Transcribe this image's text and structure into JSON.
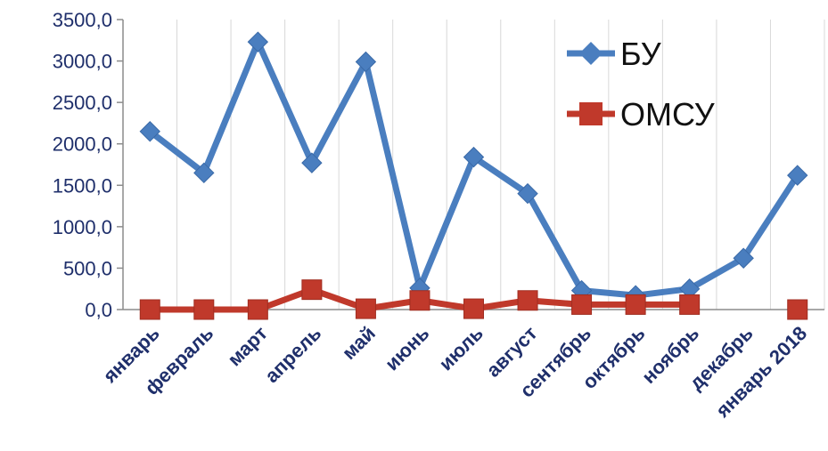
{
  "chart_data": {
    "type": "line",
    "title": "",
    "xlabel": "",
    "ylabel": "",
    "ylim": [
      0,
      3500
    ],
    "yticks": [
      "0,0",
      "500,0",
      "1000,0",
      "1500,0",
      "2000,0",
      "2500,0",
      "3000,0",
      "3500,0"
    ],
    "categories": [
      "январь",
      "февраль",
      "март",
      "апрель",
      "май",
      "июнь",
      "июль",
      "август",
      "сентябрь",
      "октябрь",
      "ноябрь",
      "декабрь",
      "январь 2018"
    ],
    "grid": "vertical category dividers",
    "legend": "top-right",
    "series": [
      {
        "name": "БУ",
        "color": "#4a7ebf",
        "marker": "diamond",
        "values": [
          2150,
          1650,
          3230,
          1770,
          2990,
          260,
          1840,
          1400,
          230,
          170,
          250,
          620,
          1620
        ]
      },
      {
        "name": "ОМСУ",
        "color": "#c0392b",
        "marker": "square",
        "values": [
          0,
          0,
          0,
          240,
          10,
          110,
          10,
          110,
          60,
          60,
          60,
          null,
          0
        ]
      }
    ]
  }
}
